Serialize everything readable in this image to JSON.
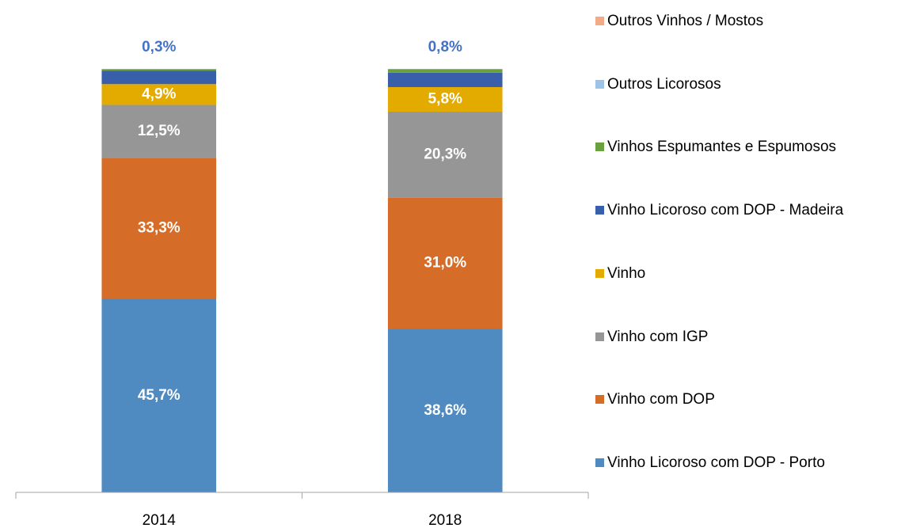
{
  "chart_data": {
    "type": "stacked_bar",
    "categories": [
      "2014",
      "2018"
    ],
    "ylim": [
      0,
      100
    ],
    "series": [
      {
        "name": "Vinho Licoroso com DOP - Porto",
        "color": "#4f8bc0",
        "values": [
          45.7,
          38.6
        ],
        "value_labels": [
          "45,7%",
          "38,6%"
        ]
      },
      {
        "name": "Vinho com DOP",
        "color": "#d56d28",
        "values": [
          33.3,
          31.0
        ],
        "value_labels": [
          "33,3%",
          "31,0%"
        ]
      },
      {
        "name": "Vinho com IGP",
        "color": "#969696",
        "values": [
          12.5,
          20.3
        ],
        "value_labels": [
          "12,5%",
          "20,3%"
        ]
      },
      {
        "name": "Vinho",
        "color": "#e3aa00",
        "values": [
          4.9,
          5.8
        ],
        "value_labels": [
          "4,9%",
          "5,8%"
        ]
      },
      {
        "name": "Vinho Licoroso com DOP - Madeira",
        "color": "#3a5faa",
        "values": [
          3.2,
          3.4
        ]
      },
      {
        "name": "Vinhos Espumantes e Espumosos",
        "color": "#69a13f",
        "values": [
          0.3,
          0.8
        ],
        "value_labels": [
          "0,3%",
          "0,8%"
        ]
      },
      {
        "name": "Outros Licorosos",
        "color": "#9dc3e6",
        "values": [
          0.1,
          0.1
        ]
      },
      {
        "name": "Outros Vinhos / Mostos",
        "color": "#f4a987",
        "values": [
          0.0,
          0.0
        ]
      }
    ]
  }
}
